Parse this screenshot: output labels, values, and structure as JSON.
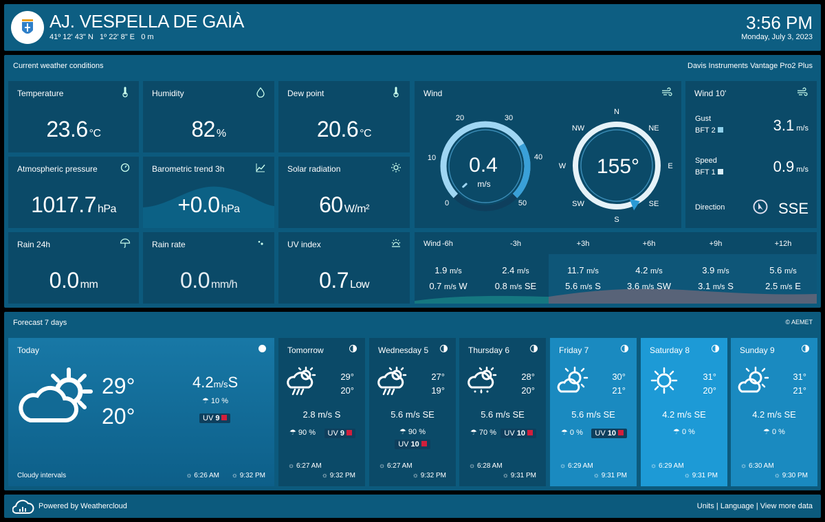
{
  "header": {
    "title": "AJ. VESPELLA DE GAIÀ",
    "lat": "41º 12' 43\" N",
    "lon": "1º 22' 8\" E",
    "alt": "0 m",
    "time": "3:56 PM",
    "date": "Monday, July 3, 2023"
  },
  "current": {
    "title": "Current weather conditions",
    "station": "Davis Instruments Vantage Pro2 Plus"
  },
  "cards": {
    "temperature": {
      "label": "Temperature",
      "value": "23.6",
      "unit": "°C"
    },
    "humidity": {
      "label": "Humidity",
      "value": "82",
      "unit": "%"
    },
    "dewpoint": {
      "label": "Dew point",
      "value": "20.6",
      "unit": "°C"
    },
    "pressure": {
      "label": "Atmospheric pressure",
      "value": "1017.7",
      "unit": "hPa"
    },
    "trend": {
      "label": "Barometric trend 3h",
      "value": "+0.0",
      "unit": "hPa"
    },
    "solar": {
      "label": "Solar radiation",
      "value": "60",
      "unit": "W/m²"
    },
    "rain24": {
      "label": "Rain 24h",
      "value": "0.0",
      "unit": "mm"
    },
    "rainrate": {
      "label": "Rain rate",
      "value": "0.0",
      "unit": "mm/h"
    },
    "uv": {
      "label": "UV index",
      "value": "0.7",
      "unit": "Low"
    }
  },
  "wind": {
    "label": "Wind",
    "speed": "0.4",
    "unit": "m/s",
    "speed_value": 0.4,
    "max": 50,
    "ticks": [
      "0",
      "10",
      "20",
      "30",
      "40",
      "50"
    ],
    "direction_deg": 155,
    "direction_label": "155°",
    "compass": [
      "N",
      "NE",
      "E",
      "SE",
      "S",
      "SW",
      "W",
      "NW"
    ]
  },
  "wind10": {
    "label": "Wind 10'",
    "gust_label": "Gust",
    "gust_bft": "BFT 2",
    "gust_value": "3.1",
    "speed_label": "Speed",
    "speed_bft": "BFT 1",
    "speed_value": "0.9",
    "unit": "m/s",
    "direction_label": "Direction",
    "direction": "SSE"
  },
  "windtimeline": {
    "label": "Wind",
    "cols": [
      {
        "h": "-6h",
        "top": "1.9",
        "bot": "0.7",
        "dir": "W"
      },
      {
        "h": "-3h",
        "top": "2.4",
        "bot": "0.8",
        "dir": "SE"
      },
      {
        "h": "+3h",
        "top": "11.7",
        "bot": "5.6",
        "dir": "S"
      },
      {
        "h": "+6h",
        "top": "4.2",
        "bot": "3.6",
        "dir": "SW"
      },
      {
        "h": "+9h",
        "top": "3.9",
        "bot": "3.1",
        "dir": "S"
      },
      {
        "h": "+12h",
        "top": "5.6",
        "bot": "2.5",
        "dir": "E"
      }
    ],
    "unit": "m/s"
  },
  "forecast": {
    "title": "Forecast 7 days",
    "source": "© AEMET",
    "today": {
      "day": "Today",
      "max": "29°",
      "min": "20°",
      "wind": "4.2",
      "wind_unit": "m/s",
      "wind_dir": "S",
      "rain": "10 %",
      "uv": "9",
      "desc": "Cloudy intervals",
      "sunrise": "6:26 AM",
      "sunset": "9:32 PM"
    },
    "days": [
      {
        "day": "Tomorrow",
        "max": "29°",
        "min": "20°",
        "wind": "2.8 m/s S",
        "rain": "90 %",
        "uv": "9",
        "sunrise": "6:27 AM",
        "sunset": "9:32 PM",
        "icon": "rain-sun"
      },
      {
        "day": "Wednesday 5",
        "max": "27°",
        "min": "19°",
        "wind": "5.6 m/s SE",
        "rain": "90 %",
        "uv": "10",
        "sunrise": "6:27 AM",
        "sunset": "9:32 PM",
        "icon": "rain-sun"
      },
      {
        "day": "Thursday 6",
        "max": "28°",
        "min": "20°",
        "wind": "5.6 m/s SE",
        "rain": "70 %",
        "uv": "10",
        "sunrise": "6:28 AM",
        "sunset": "9:31 PM",
        "icon": "drizzle-sun"
      },
      {
        "day": "Friday 7",
        "max": "30°",
        "min": "21°",
        "wind": "5.6 m/s SE",
        "rain": "0 %",
        "uv": "10",
        "sunrise": "6:29 AM",
        "sunset": "9:31 PM",
        "icon": "cloud-sun"
      },
      {
        "day": "Saturday 8",
        "max": "31°",
        "min": "20°",
        "wind": "4.2 m/s SE",
        "rain": "0 %",
        "sunrise": "6:29 AM",
        "sunset": "9:31 PM",
        "icon": "sun"
      },
      {
        "day": "Sunday 9",
        "max": "31°",
        "min": "21°",
        "wind": "4.2 m/s SE",
        "rain": "0 %",
        "sunrise": "6:30 AM",
        "sunset": "9:30 PM",
        "icon": "cloud-sun"
      }
    ]
  },
  "footer": {
    "powered": "Powered by Weathercloud",
    "units": "Units",
    "language": "Language",
    "more": "View more data"
  },
  "colors": {
    "panel": "#0b4a68",
    "bar": "#0c5a7d",
    "accent": "#3aa0d8",
    "uv": "#d21f3c"
  }
}
